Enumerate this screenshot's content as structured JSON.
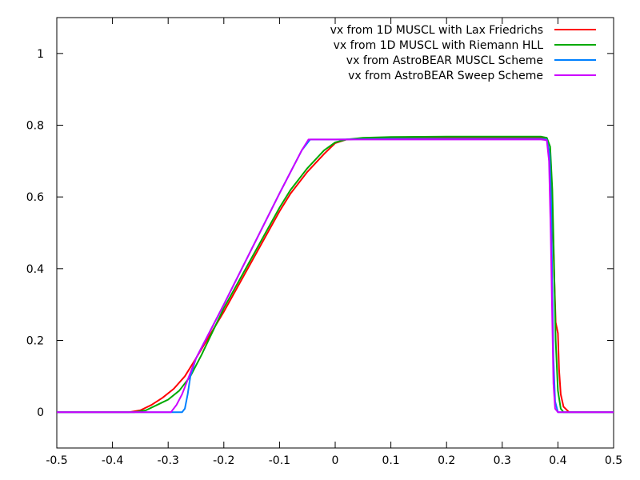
{
  "chart_data": {
    "type": "line",
    "title": "",
    "xlabel": "",
    "ylabel": "",
    "xlim": [
      -0.5,
      0.5
    ],
    "ylim": [
      -0.1,
      1.1
    ],
    "grid": false,
    "legend_position": "top-right",
    "x_ticks": [
      {
        "value": -0.5,
        "label": "-0.5"
      },
      {
        "value": -0.4,
        "label": "-0.4"
      },
      {
        "value": -0.3,
        "label": "-0.3"
      },
      {
        "value": -0.2,
        "label": "-0.2"
      },
      {
        "value": -0.1,
        "label": "-0.1"
      },
      {
        "value": 0,
        "label": "0"
      },
      {
        "value": 0.1,
        "label": "0.1"
      },
      {
        "value": 0.2,
        "label": "0.2"
      },
      {
        "value": 0.3,
        "label": "0.3"
      },
      {
        "value": 0.4,
        "label": "0.4"
      },
      {
        "value": 0.5,
        "label": "0.5"
      }
    ],
    "y_ticks": [
      {
        "value": 0,
        "label": "0"
      },
      {
        "value": 0.2,
        "label": "0.2"
      },
      {
        "value": 0.4,
        "label": "0.4"
      },
      {
        "value": 0.6,
        "label": "0.6"
      },
      {
        "value": 0.8,
        "label": "0.8"
      },
      {
        "value": 1,
        "label": "1"
      }
    ],
    "series": [
      {
        "name": "vx from 1D MUSCL with Lax Friedrichs",
        "color": "#ff0000",
        "points": [
          [
            -0.5,
            0
          ],
          [
            -0.37,
            0
          ],
          [
            -0.35,
            0.005
          ],
          [
            -0.33,
            0.02
          ],
          [
            -0.31,
            0.04
          ],
          [
            -0.29,
            0.065
          ],
          [
            -0.27,
            0.1
          ],
          [
            -0.25,
            0.15
          ],
          [
            -0.2,
            0.28
          ],
          [
            -0.15,
            0.42
          ],
          [
            -0.1,
            0.56
          ],
          [
            -0.08,
            0.61
          ],
          [
            -0.05,
            0.67
          ],
          [
            -0.02,
            0.72
          ],
          [
            0,
            0.75
          ],
          [
            0.02,
            0.76
          ],
          [
            0.05,
            0.762
          ],
          [
            0.1,
            0.765
          ],
          [
            0.2,
            0.765
          ],
          [
            0.3,
            0.765
          ],
          [
            0.37,
            0.765
          ],
          [
            0.38,
            0.76
          ],
          [
            0.385,
            0.72
          ],
          [
            0.39,
            0.58
          ],
          [
            0.393,
            0.4
          ],
          [
            0.396,
            0.25
          ],
          [
            0.4,
            0.22
          ],
          [
            0.402,
            0.12
          ],
          [
            0.405,
            0.05
          ],
          [
            0.41,
            0.015
          ],
          [
            0.42,
            0
          ],
          [
            0.5,
            0
          ]
        ]
      },
      {
        "name": "vx from 1D MUSCL with Riemann HLL",
        "color": "#00aa00",
        "points": [
          [
            -0.5,
            0
          ],
          [
            -0.36,
            0
          ],
          [
            -0.34,
            0.005
          ],
          [
            -0.32,
            0.02
          ],
          [
            -0.3,
            0.035
          ],
          [
            -0.28,
            0.06
          ],
          [
            -0.26,
            0.1
          ],
          [
            -0.24,
            0.16
          ],
          [
            -0.2,
            0.29
          ],
          [
            -0.15,
            0.43
          ],
          [
            -0.1,
            0.57
          ],
          [
            -0.08,
            0.62
          ],
          [
            -0.05,
            0.68
          ],
          [
            -0.02,
            0.73
          ],
          [
            0,
            0.752
          ],
          [
            0.02,
            0.76
          ],
          [
            0.05,
            0.765
          ],
          [
            0.1,
            0.767
          ],
          [
            0.2,
            0.768
          ],
          [
            0.3,
            0.768
          ],
          [
            0.37,
            0.768
          ],
          [
            0.38,
            0.765
          ],
          [
            0.386,
            0.74
          ],
          [
            0.39,
            0.62
          ],
          [
            0.393,
            0.42
          ],
          [
            0.396,
            0.2
          ],
          [
            0.4,
            0.06
          ],
          [
            0.405,
            0.01
          ],
          [
            0.41,
            0
          ],
          [
            0.5,
            0
          ]
        ]
      },
      {
        "name": "vx from AstroBEAR MUSCL Scheme",
        "color": "#0080ff",
        "points": [
          [
            -0.5,
            0
          ],
          [
            -0.275,
            0
          ],
          [
            -0.27,
            0.01
          ],
          [
            -0.265,
            0.05
          ],
          [
            -0.26,
            0.1
          ],
          [
            -0.25,
            0.15
          ],
          [
            -0.2,
            0.3
          ],
          [
            -0.15,
            0.455
          ],
          [
            -0.1,
            0.61
          ],
          [
            -0.06,
            0.73
          ],
          [
            -0.045,
            0.76
          ],
          [
            0,
            0.76
          ],
          [
            0.1,
            0.762
          ],
          [
            0.2,
            0.762
          ],
          [
            0.3,
            0.762
          ],
          [
            0.37,
            0.762
          ],
          [
            0.38,
            0.76
          ],
          [
            0.385,
            0.72
          ],
          [
            0.388,
            0.58
          ],
          [
            0.39,
            0.35
          ],
          [
            0.392,
            0.15
          ],
          [
            0.395,
            0.03
          ],
          [
            0.4,
            0
          ],
          [
            0.5,
            0
          ]
        ]
      },
      {
        "name": "vx from AstroBEAR Sweep Scheme",
        "color": "#cc00ff",
        "points": [
          [
            -0.5,
            0
          ],
          [
            -0.295,
            0
          ],
          [
            -0.285,
            0.02
          ],
          [
            -0.275,
            0.05
          ],
          [
            -0.265,
            0.09
          ],
          [
            -0.25,
            0.15
          ],
          [
            -0.2,
            0.3
          ],
          [
            -0.15,
            0.455
          ],
          [
            -0.1,
            0.61
          ],
          [
            -0.06,
            0.73
          ],
          [
            -0.048,
            0.76
          ],
          [
            0,
            0.76
          ],
          [
            0.1,
            0.76
          ],
          [
            0.2,
            0.76
          ],
          [
            0.3,
            0.76
          ],
          [
            0.37,
            0.76
          ],
          [
            0.38,
            0.758
          ],
          [
            0.384,
            0.7
          ],
          [
            0.387,
            0.5
          ],
          [
            0.39,
            0.25
          ],
          [
            0.392,
            0.08
          ],
          [
            0.395,
            0.01
          ],
          [
            0.4,
            0
          ],
          [
            0.5,
            0
          ]
        ]
      }
    ]
  }
}
